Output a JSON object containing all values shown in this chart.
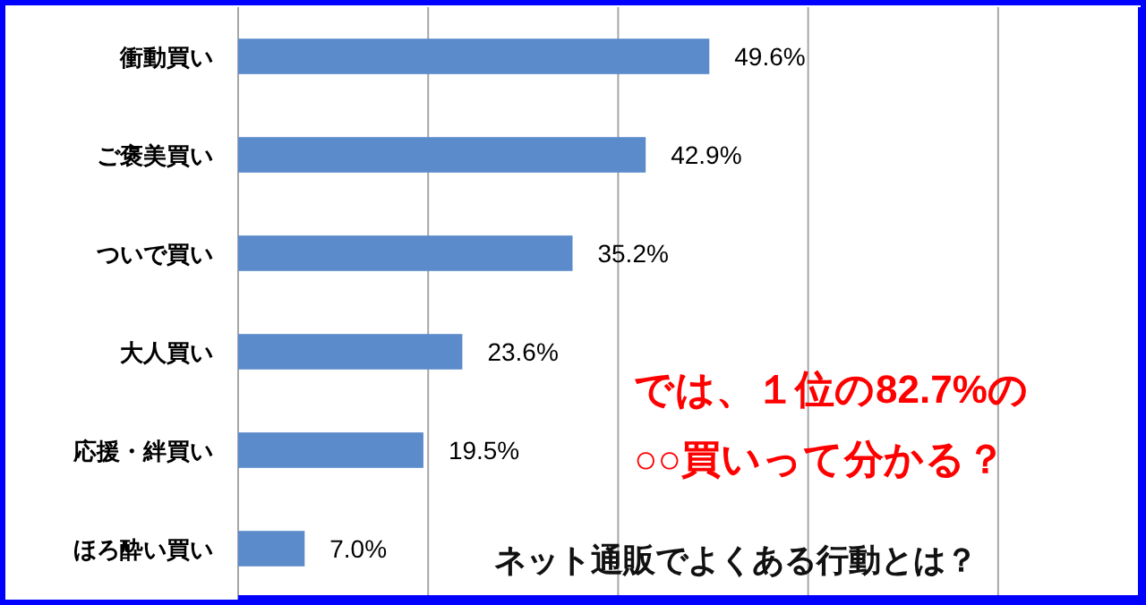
{
  "chart_data": {
    "type": "bar",
    "orientation": "horizontal",
    "categories": [
      "衝動買い",
      "ご褒美買い",
      "ついで買い",
      "大人買い",
      "応援・絆買い",
      "ほろ酔い買い"
    ],
    "values": [
      49.6,
      42.9,
      35.2,
      23.6,
      19.5,
      7.0
    ],
    "value_labels": [
      "49.6%",
      "42.9%",
      "35.2%",
      "23.6%",
      "19.5%",
      "7.0%"
    ],
    "color": "#5b8bcb",
    "xlim": [
      0,
      95
    ],
    "xticks": [
      {
        "value": 0,
        "label": null
      },
      {
        "value": 20,
        "label": null
      },
      {
        "value": 40,
        "label": null
      },
      {
        "value": 60,
        "label": null
      },
      {
        "value": 80,
        "label": null
      }
    ],
    "grid": "x",
    "tick_labels": "y",
    "annotations": [
      "では、１位の82.7%の",
      "○○買いって分かる？",
      "ネット通販でよくある行動とは？"
    ]
  }
}
